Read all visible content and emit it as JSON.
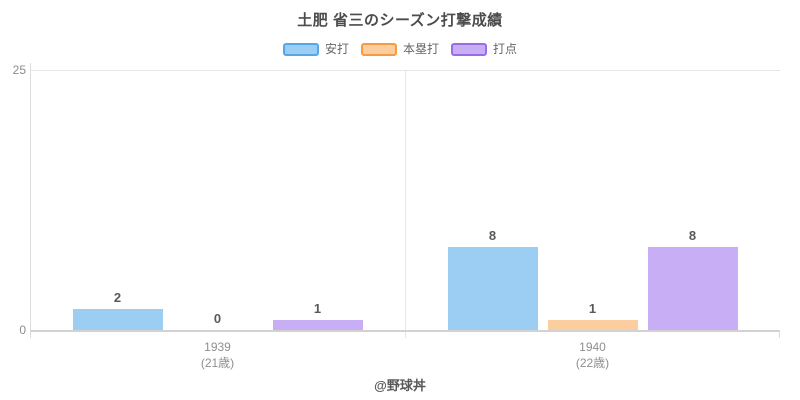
{
  "watermark": "@野球丼",
  "colors": {
    "background": "#ffffff",
    "title_text": "#4c4c4c",
    "axis_line": "#d2d2d2",
    "gridline": "#e6e6e6",
    "tick_text": "#8c8c8c",
    "value_label_text": "#595959",
    "legend_text": "#666666"
  },
  "chart_data": {
    "type": "bar",
    "title": "土肥 省三のシーズン打撃成績",
    "categories": [
      "1939",
      "1940"
    ],
    "category_sublabels": [
      "(21歳)",
      "(22歳)"
    ],
    "series": [
      {
        "key": "hits",
        "name": "安打",
        "values": [
          2,
          8
        ],
        "fill": "#9ccdf3",
        "border": "#55a7ec"
      },
      {
        "key": "home-runs",
        "name": "本塁打",
        "values": [
          0,
          1
        ],
        "fill": "#fccd9f",
        "border": "#f89b40"
      },
      {
        "key": "rbi",
        "name": "打点",
        "values": [
          1,
          8
        ],
        "fill": "#c8aff5",
        "border": "#9a6ce8"
      }
    ],
    "ylim": [
      0,
      25
    ],
    "ytick_labels": [
      "25",
      "0"
    ],
    "grid": "top gridline and vertical band divider only",
    "legend_position": "top",
    "value_labels": true,
    "xlabel": "",
    "ylabel": ""
  }
}
